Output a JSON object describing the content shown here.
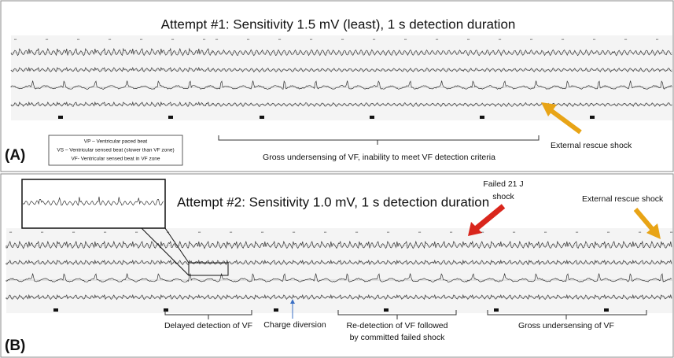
{
  "panel_a": {
    "label": "(A)",
    "title": "Attempt #1: Sensitivity 1.5 mV (least), 1 s detection duration",
    "legend": [
      "VP – Ventricular paced beat",
      "VS – Ventricular sensed beat (slower than VF zone)",
      "VF- Ventricular sensed beat in VF zone"
    ],
    "brace_label": "Gross undersensing of VF, inability to meet VF detection criteria",
    "arrow_label": "External rescue shock"
  },
  "panel_b": {
    "label": "(B)",
    "title": "Attempt #2: Sensitivity 1.0 mV, 1 s detection duration",
    "failed_shock": [
      "Failed 21 J",
      "shock"
    ],
    "arrow_label": "External rescue shock",
    "charge_diversion": "Charge diversion",
    "brace_labels": [
      [
        "Delayed detection of VF"
      ],
      [
        "Re-detection of VF followed",
        "by committed failed shock"
      ],
      [
        "Gross undersensing of VF"
      ]
    ]
  }
}
